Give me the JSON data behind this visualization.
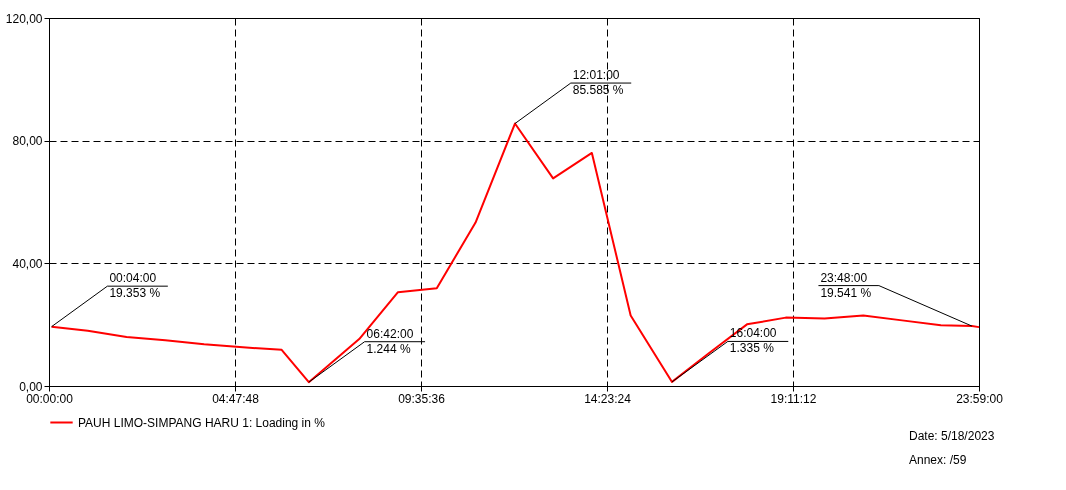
{
  "chart_data": {
    "type": "line",
    "x": [
      0.0667,
      1,
      2,
      3,
      4,
      5,
      6,
      6.7,
      8,
      9,
      10,
      11,
      12.0167,
      13,
      14,
      15,
      16.0667,
      17,
      18,
      19,
      20,
      21,
      22,
      23,
      23.8,
      23.9833
    ],
    "series": [
      {
        "name": "PAUH LIMO-SIMPANG HARU 1: Loading in %",
        "color": "#ff0000",
        "values": [
          19.353,
          18.0,
          16.0,
          14.9,
          13.6,
          12.6,
          11.8,
          1.244,
          15.3,
          30.6,
          31.9,
          53.3,
          85.585,
          67.7,
          76.0,
          23.0,
          1.335,
          10.5,
          20.1,
          22.3,
          22.0,
          23.0,
          21.4,
          19.8,
          19.541,
          19.2
        ]
      }
    ],
    "xlim": [
      0,
      23.9833
    ],
    "xticks": [
      {
        "value": 0,
        "label": "00:00:00"
      },
      {
        "value": 4.7967,
        "label": "04:47:48"
      },
      {
        "value": 9.5933,
        "label": "09:35:36"
      },
      {
        "value": 14.39,
        "label": "14:23:24"
      },
      {
        "value": 19.1867,
        "label": "19:11:12"
      },
      {
        "value": 23.9833,
        "label": "23:59:00"
      }
    ],
    "ylim": [
      0,
      120
    ],
    "yticks": [
      {
        "value": 0,
        "label": "0,00"
      },
      {
        "value": 40,
        "label": "40,00"
      },
      {
        "value": 80,
        "label": "80,00"
      },
      {
        "value": 120,
        "label": "120,00"
      }
    ],
    "grid": true,
    "legend": "bottom",
    "marker": "none",
    "line_style": "solid",
    "annotations": [
      {
        "text": "00:04:00\n19.353 %",
        "x": 0.0667,
        "y": 19.353
      },
      {
        "text": "06:42:00\n1.244 %",
        "x": 6.7,
        "y": 1.244
      },
      {
        "text": "12:01:00\n85.585 %",
        "x": 12.0167,
        "y": 85.585
      },
      {
        "text": "16:04:00\n1.335 %",
        "x": 16.0667,
        "y": 1.335
      },
      {
        "text": "23:48:00\n19.541 %",
        "x": 23.8,
        "y": 19.541
      },
      "Date: 5/18/2023",
      "Annex:  /59"
    ]
  }
}
